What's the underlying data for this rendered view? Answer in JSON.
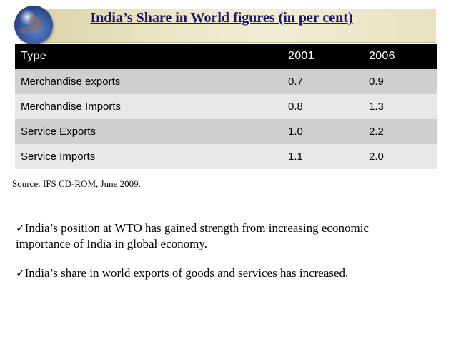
{
  "title": "India’s Share in World figures (in per cent)",
  "table": {
    "headers": [
      "Type",
      "2001",
      "2006"
    ],
    "rows": [
      [
        "Merchandise exports",
        "0.7",
        "0.9"
      ],
      [
        "Merchandise Imports",
        "0.8",
        "1.3"
      ],
      [
        "Service Exports",
        "1.0",
        "2.2"
      ],
      [
        "Service Imports",
        "1.1",
        "2.0"
      ]
    ]
  },
  "source": "Source: IFS CD-ROM, June 2009.",
  "bullets": [
    "India’s position at WTO has gained strength from increasing economic importance of India in global economy.",
    "India’s share in world exports of goods and services has increased."
  ],
  "check_glyph": "✓",
  "colors": {
    "title_text": "#1a1570",
    "header_bg": "#000000",
    "row_dark": "#cfcfcf",
    "row_light": "#e8e8e8",
    "band": "#ebe6c6"
  }
}
